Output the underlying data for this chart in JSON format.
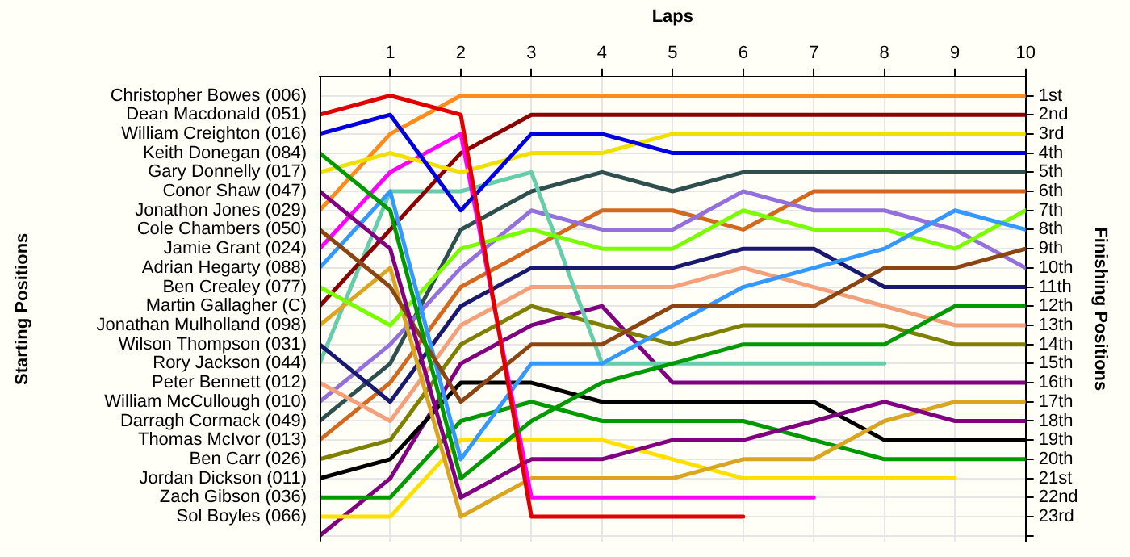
{
  "chart_data": {
    "type": "line",
    "xlabel": "Laps",
    "ylabel": "Finishing Positions",
    "x": [
      0,
      1,
      2,
      3,
      4,
      5,
      6,
      7,
      8,
      9,
      10
    ],
    "xlim": [
      0,
      10
    ],
    "xticks": [
      1,
      2,
      3,
      4,
      5,
      6,
      7,
      8,
      9,
      10
    ],
    "ylim": [
      24.3,
      0
    ],
    "yticks": [
      {
        "value": 1,
        "label": "1st"
      },
      {
        "value": 2,
        "label": "2nd"
      },
      {
        "value": 3,
        "label": "3rd"
      },
      {
        "value": 4,
        "label": "4th"
      },
      {
        "value": 5,
        "label": "5th"
      },
      {
        "value": 6,
        "label": "6th"
      },
      {
        "value": 7,
        "label": "7th"
      },
      {
        "value": 8,
        "label": "8th"
      },
      {
        "value": 9,
        "label": "9th"
      },
      {
        "value": 10,
        "label": "10th"
      },
      {
        "value": 11,
        "label": "11th"
      },
      {
        "value": 12,
        "label": "12th"
      },
      {
        "value": 13,
        "label": "13th"
      },
      {
        "value": 14,
        "label": "14th"
      },
      {
        "value": 15,
        "label": "15th"
      },
      {
        "value": 16,
        "label": "16th"
      },
      {
        "value": 17,
        "label": "17th"
      },
      {
        "value": 18,
        "label": "18th"
      },
      {
        "value": 19,
        "label": "19th"
      },
      {
        "value": 20,
        "label": "20th"
      },
      {
        "value": 21,
        "label": "21st"
      },
      {
        "value": 22,
        "label": "22nd"
      },
      {
        "value": 23,
        "label": "23rd"
      },
      {
        "value": 24,
        "label": null
      }
    ],
    "grid": true,
    "marker": "none",
    "line_style": "solid",
    "annotations": [
      "Starting Positions",
      "Christopher Bowes (006)",
      "Dean Macdonald (051)",
      "William Creighton (016)",
      "Keith Donegan (084)",
      "Gary Donnelly (017)",
      "Conor Shaw (047)",
      "Jonathon Jones (029)",
      "Cole Chambers (050)",
      "Jamie Grant (024)",
      "Adrian Hegarty (088)",
      "Ben Crealey (077)",
      "Martin Gallagher (C)",
      "Jonathan Mulholland (098)",
      "Wilson Thompson (031)",
      "Rory Jackson (044)",
      "Peter Bennett (012)",
      "William McCullough (010)",
      "Darragh Cormack (049)",
      "Thomas McIvor (013)",
      "Ben Carr (026)",
      "Jordan Dickson (011)",
      "Zach Gibson (036)",
      "Sol Boyles (066)"
    ],
    "series": [
      {
        "color": "#e00000",
        "values": [
          2,
          1,
          2,
          23,
          23,
          23,
          23,
          null,
          null,
          null,
          null
        ]
      },
      {
        "color": "#0000e0",
        "values": [
          3,
          2,
          7,
          3,
          3,
          4,
          4,
          4,
          4,
          4,
          4
        ]
      },
      {
        "color": "#009900",
        "values": [
          4,
          7,
          21,
          18,
          16,
          15,
          14,
          14,
          14,
          12,
          12
        ]
      },
      {
        "color": "#f0e000",
        "values": [
          5,
          4,
          5,
          4,
          4,
          3,
          3,
          3,
          3,
          3,
          3
        ]
      },
      {
        "color": "#800080",
        "values": [
          6,
          9,
          22,
          20,
          20,
          19,
          19,
          18,
          17,
          18,
          18
        ]
      },
      {
        "color": "#ff8c1a",
        "values": [
          7,
          3,
          1,
          1,
          1,
          1,
          1,
          1,
          1,
          1,
          1
        ]
      },
      {
        "color": "#8b4513",
        "values": [
          8,
          11,
          17,
          14,
          14,
          12,
          12,
          12,
          10,
          10,
          9
        ]
      },
      {
        "color": "#ff00ff",
        "values": [
          9,
          5,
          3,
          22,
          22,
          22,
          22,
          22,
          null,
          null,
          null
        ]
      },
      {
        "color": "#3399ff",
        "values": [
          10,
          6,
          20,
          15,
          15,
          13,
          11,
          10,
          9,
          7,
          8
        ]
      },
      {
        "color": "#7cfc00",
        "values": [
          11,
          13,
          9,
          8,
          9,
          9,
          7,
          8,
          8,
          9,
          7
        ]
      },
      {
        "color": "#8b0000",
        "values": [
          12,
          8,
          4,
          2,
          2,
          2,
          2,
          2,
          2,
          2,
          2
        ]
      },
      {
        "color": "#daa520",
        "values": [
          13,
          10,
          23,
          21,
          21,
          21,
          20,
          20,
          18,
          17,
          17
        ]
      },
      {
        "color": "#191970",
        "values": [
          14,
          17,
          12,
          10,
          10,
          10,
          9,
          9,
          11,
          11,
          11
        ]
      },
      {
        "color": "#66cdaa",
        "values": [
          15,
          6,
          6,
          5,
          15,
          15,
          15,
          15,
          15,
          null,
          null
        ]
      },
      {
        "color": "#f4a07a",
        "values": [
          16,
          18,
          13,
          11,
          11,
          11,
          10,
          11,
          12,
          13,
          13
        ]
      },
      {
        "color": "#9370db",
        "values": [
          17,
          14,
          10,
          7,
          8,
          8,
          6,
          7,
          7,
          8,
          10
        ]
      },
      {
        "color": "#2f4f4f",
        "values": [
          18,
          15,
          8,
          6,
          5,
          6,
          5,
          5,
          5,
          5,
          5
        ]
      },
      {
        "color": "#d2691e",
        "values": [
          19,
          16,
          11,
          9,
          7,
          7,
          8,
          6,
          6,
          6,
          6
        ]
      },
      {
        "color": "#808000",
        "values": [
          20,
          19,
          14,
          12,
          13,
          14,
          13,
          13,
          13,
          14,
          14
        ]
      },
      {
        "color": "#000000",
        "values": [
          21,
          20,
          16,
          16,
          17,
          17,
          17,
          17,
          19,
          19,
          19
        ]
      },
      {
        "color": "#009900",
        "values": [
          22,
          22,
          18,
          17,
          18,
          18,
          18,
          19,
          20,
          20,
          20
        ]
      },
      {
        "color": "#ffe000",
        "values": [
          23,
          23,
          19,
          19,
          19,
          20,
          21,
          21,
          21,
          21,
          null
        ]
      },
      {
        "color": "#800080",
        "values": [
          24,
          21,
          15,
          13,
          12,
          16,
          16,
          16,
          16,
          16,
          16
        ]
      }
    ]
  }
}
